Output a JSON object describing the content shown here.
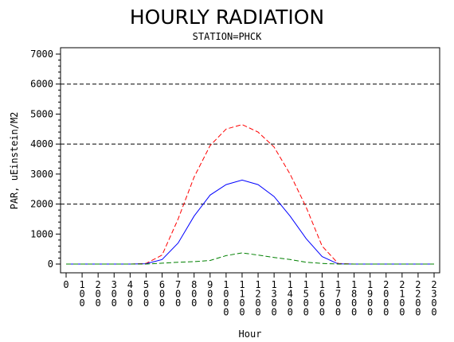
{
  "chart_data": {
    "type": "line",
    "title": "HOURLY RADIATION",
    "subtitle": "STATION=PHCK",
    "xlabel": "Hour",
    "ylabel": "PAR, uEinstein/M2",
    "ylim": [
      0,
      7000
    ],
    "yticks": [
      0,
      1000,
      2000,
      3000,
      4000,
      5000,
      6000,
      7000
    ],
    "reference_lines_y": [
      2000,
      4000,
      6000
    ],
    "categories": [
      "0",
      "100",
      "200",
      "300",
      "400",
      "500",
      "600",
      "700",
      "800",
      "900",
      "1000",
      "1100",
      "1200",
      "1300",
      "1400",
      "1500",
      "1600",
      "1700",
      "1800",
      "1900",
      "2000",
      "2100",
      "2200",
      "2300"
    ],
    "series": [
      {
        "color": "#ff0000",
        "dash": "dashed",
        "values": [
          0,
          0,
          0,
          0,
          0,
          20,
          300,
          1500,
          2900,
          3950,
          4500,
          4650,
          4400,
          3900,
          3000,
          1900,
          600,
          20,
          0,
          0,
          0,
          0,
          0,
          0
        ]
      },
      {
        "color": "#0000ff",
        "dash": "solid",
        "values": [
          0,
          0,
          0,
          0,
          0,
          10,
          150,
          700,
          1600,
          2300,
          2650,
          2800,
          2650,
          2250,
          1600,
          850,
          250,
          5,
          0,
          0,
          0,
          0,
          0,
          0
        ]
      },
      {
        "color": "#008000",
        "dash": "dashed",
        "values": [
          0,
          0,
          0,
          0,
          0,
          0,
          30,
          60,
          80,
          120,
          280,
          370,
          300,
          220,
          150,
          60,
          20,
          0,
          0,
          0,
          0,
          0,
          0,
          0
        ]
      }
    ]
  }
}
